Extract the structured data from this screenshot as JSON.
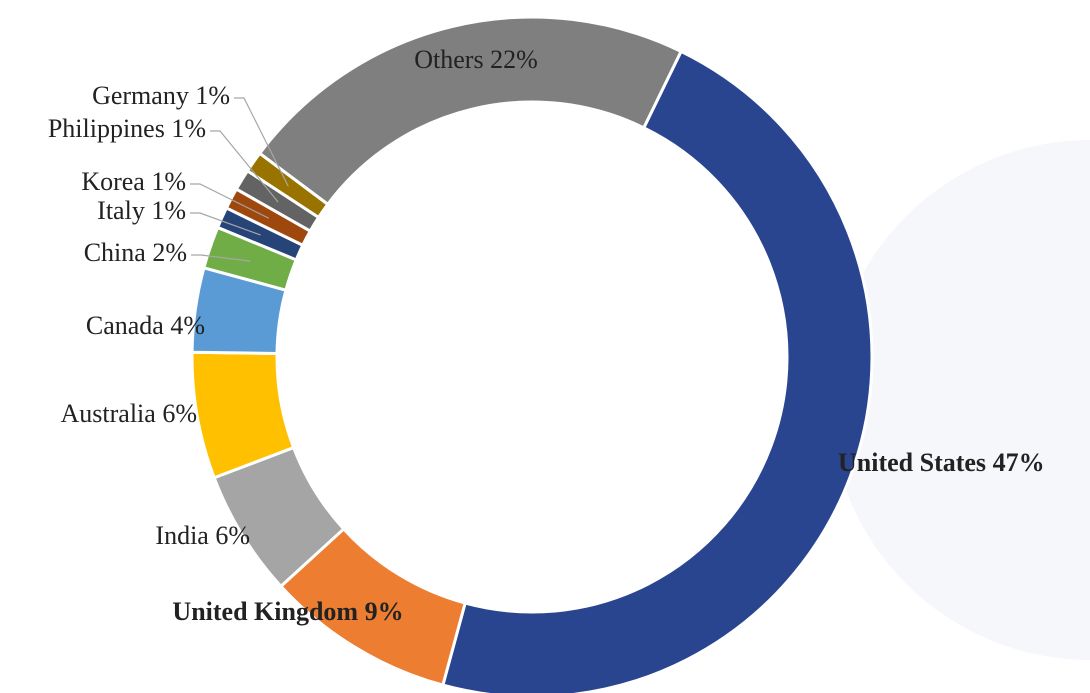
{
  "chart_data": {
    "type": "donut",
    "categories": [
      "United States",
      "United Kingdom",
      "India",
      "Australia",
      "Canada",
      "China",
      "Italy",
      "Korea",
      "Philippines",
      "Germany",
      "Others"
    ],
    "values": [
      47,
      9,
      6,
      6,
      4,
      2,
      1,
      1,
      1,
      1,
      22
    ],
    "value_labels": [
      "47%",
      "9%",
      "6%",
      "6%",
      "4%",
      "2%",
      "1%",
      "1%",
      "1%",
      "1%",
      "22%"
    ],
    "colors": [
      "#2a4590",
      "#ed7d31",
      "#a5a5a5",
      "#ffc000",
      "#5b9bd5",
      "#70ad47",
      "#264478",
      "#9e480e",
      "#636363",
      "#997300",
      "#7f7f7f"
    ]
  }
}
